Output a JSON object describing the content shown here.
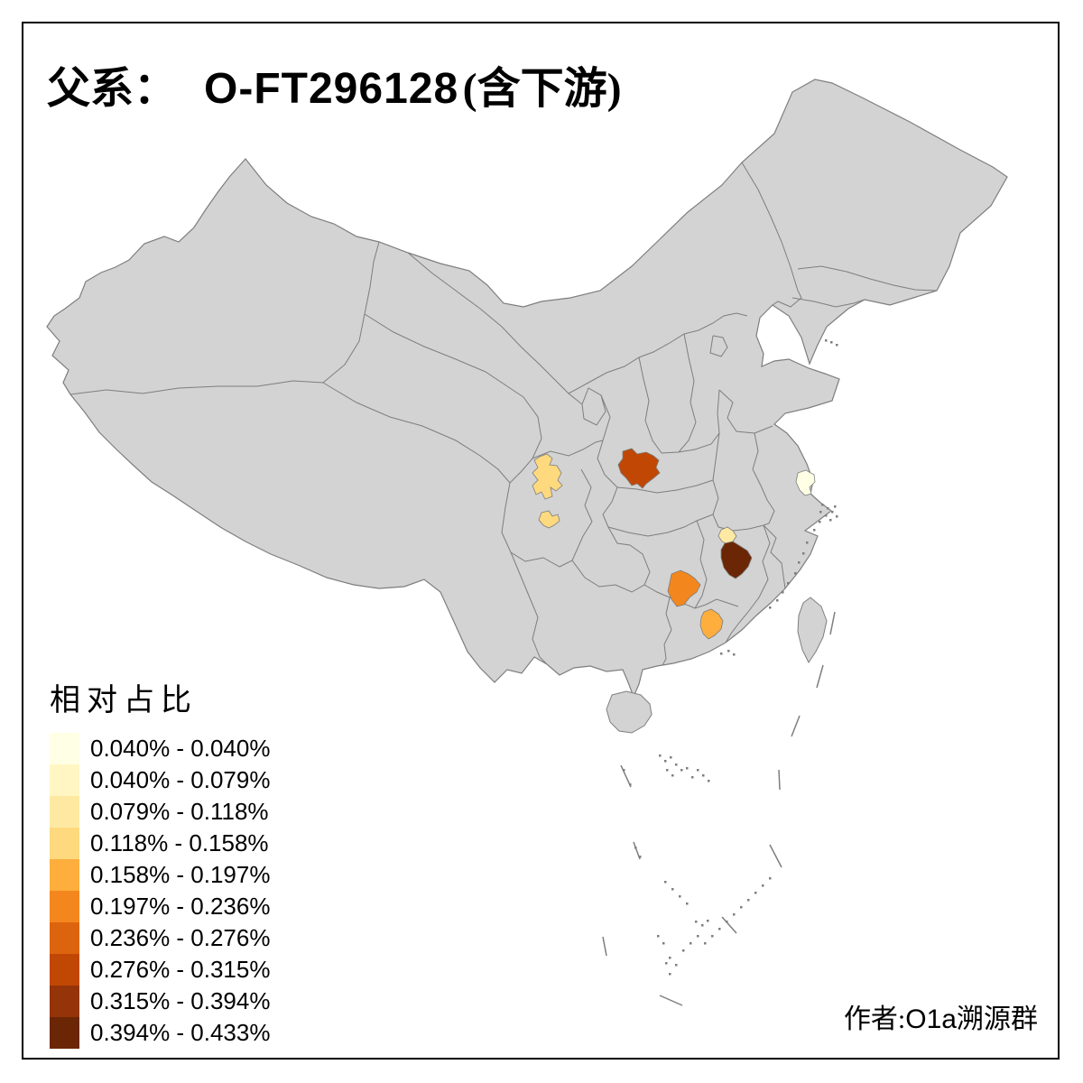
{
  "title": {
    "prefix": "父系：",
    "haplogroup": "O-FT296128",
    "suffix": "(含下游)"
  },
  "legend": {
    "title": "相对占比",
    "bins": [
      {
        "label": "0.040% - 0.040%",
        "color": "#FFFFE5"
      },
      {
        "label": "0.040% - 0.079%",
        "color": "#FFF6C3"
      },
      {
        "label": "0.079% - 0.118%",
        "color": "#FEE9A2"
      },
      {
        "label": "0.118% - 0.158%",
        "color": "#FED97E"
      },
      {
        "label": "0.158% - 0.197%",
        "color": "#FDAE3C"
      },
      {
        "label": "0.197% - 0.236%",
        "color": "#F4861E"
      },
      {
        "label": "0.236% - 0.276%",
        "color": "#DD640E"
      },
      {
        "label": "0.276% - 0.315%",
        "color": "#C14705"
      },
      {
        "label": "0.315% - 0.394%",
        "color": "#943408"
      },
      {
        "label": "0.394% - 0.433%",
        "color": "#6B2605"
      }
    ]
  },
  "credit": {
    "prefix": "作者:",
    "latin": "O1a",
    "suffix": "溯源群"
  },
  "map": {
    "base_fill": "#D3D3D3",
    "border_color": "#7E7E7E",
    "background": "#FFFFFF",
    "frame_color": "#000000",
    "highlighted_regions": [
      {
        "id": "region-sichuan-a",
        "bin": "0.118% - 0.158%",
        "color": "#FED97E"
      },
      {
        "id": "region-sichuan-b",
        "bin": "0.118% - 0.158%",
        "color": "#FED97E"
      },
      {
        "id": "region-hubei-nw",
        "bin": "0.276% - 0.315%",
        "color": "#C14705"
      },
      {
        "id": "region-jiangsu-se",
        "bin": "0.040% - 0.040%",
        "color": "#FFFFE5"
      },
      {
        "id": "region-jiangxi-n",
        "bin": "0.079% - 0.118%",
        "color": "#FEE9A2"
      },
      {
        "id": "region-jiangxi-w",
        "bin": "0.394% - 0.433%",
        "color": "#6B2605"
      },
      {
        "id": "region-hunan-c",
        "bin": "0.197% - 0.236%",
        "color": "#F4861E"
      },
      {
        "id": "region-guangdong-n",
        "bin": "0.158% - 0.197%",
        "color": "#FDAE3C"
      }
    ]
  }
}
